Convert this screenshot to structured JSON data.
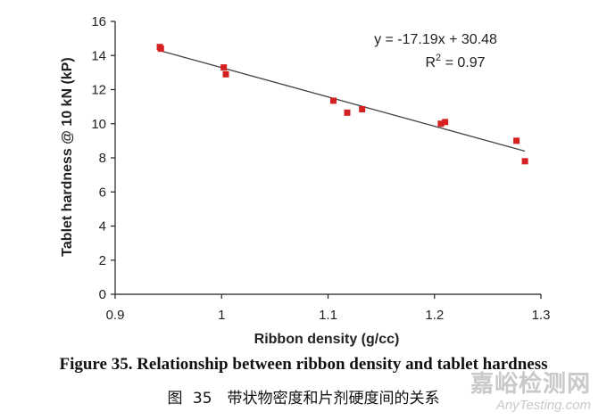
{
  "chart_data": {
    "type": "scatter",
    "xlabel": "Ribbon density (g/cc)",
    "ylabel": "Tablet hardness @ 10 kN (kP)",
    "xlim": [
      0.9,
      1.3
    ],
    "ylim": [
      0,
      16
    ],
    "xticks": [
      "0.9",
      "1",
      "1.1",
      "1.2",
      "1.3"
    ],
    "xtick_values": [
      0.9,
      1.0,
      1.1,
      1.2,
      1.3
    ],
    "yticks": [
      "0",
      "2",
      "4",
      "6",
      "8",
      "10",
      "12",
      "14",
      "16"
    ],
    "ytick_values": [
      0,
      2,
      4,
      6,
      8,
      10,
      12,
      14,
      16
    ],
    "points": [
      {
        "x": 0.942,
        "y": 14.5
      },
      {
        "x": 0.943,
        "y": 14.4
      },
      {
        "x": 1.002,
        "y": 13.3
      },
      {
        "x": 1.004,
        "y": 12.9
      },
      {
        "x": 1.105,
        "y": 11.35
      },
      {
        "x": 1.118,
        "y": 10.65
      },
      {
        "x": 1.132,
        "y": 10.85
      },
      {
        "x": 1.206,
        "y": 10.0
      },
      {
        "x": 1.21,
        "y": 10.1
      },
      {
        "x": 1.277,
        "y": 9.0
      },
      {
        "x": 1.285,
        "y": 7.8
      }
    ],
    "marker_color": "#d42020",
    "trendline": {
      "slope": -17.19,
      "intercept": 30.48,
      "x_range": [
        0.94,
        1.285
      ],
      "color": "#444444"
    },
    "equation_text": "y = -17.19x + 30.48",
    "r2_prefix": "R",
    "r2_sup": "2",
    "r2_suffix": " = 0.97"
  },
  "caption": {
    "english": "Figure 35. Relationship between ribbon density and tablet hardness",
    "chinese": "图 35　带状物密度和片剂硬度间的关系"
  },
  "watermark": {
    "chinese": "嘉峪检测网",
    "english": "AnyTesting.com"
  }
}
